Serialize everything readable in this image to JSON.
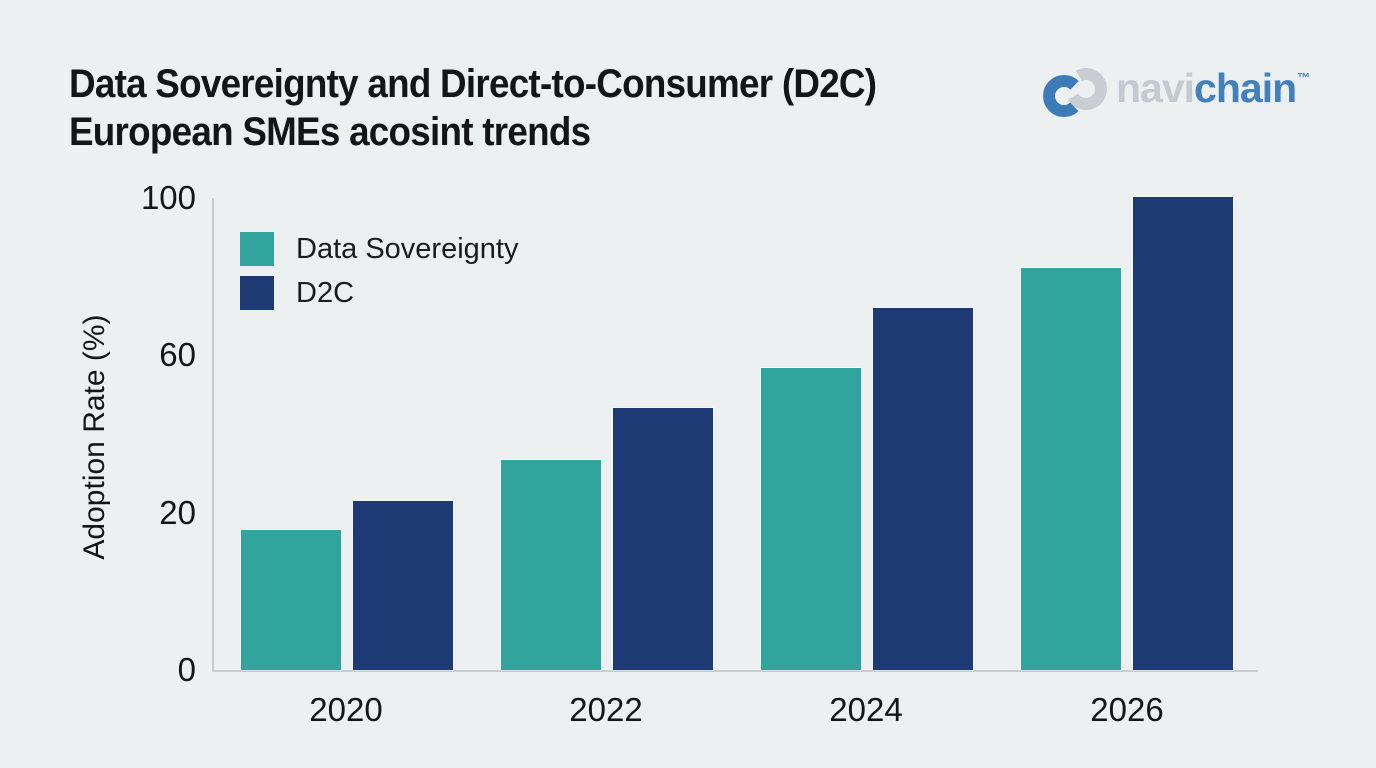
{
  "header": {
    "title_line1": "Data Sovereignty and Direct-to-Consumer (D2C)",
    "title_line2": "European SMEs acosint trends"
  },
  "logo": {
    "mark": "interlocking-chain-rings-icon",
    "gray_word": "navi",
    "blue_word": "chain",
    "trademark": "™",
    "blue": "#4381bd",
    "gray": "#c3cad0",
    "mark_blue": "#3d7ab8",
    "mark_gray": "#c9ced3"
  },
  "legend": {
    "items": [
      {
        "label": "Data Sovereignty",
        "color": "#31a49e"
      },
      {
        "label": "D2C",
        "color": "#1e3a74"
      }
    ]
  },
  "axes": {
    "ylabel": "Adoption Rate (%)",
    "yticks": [
      "100",
      "60",
      "20",
      "0"
    ],
    "xticks": [
      "2020",
      "2022",
      "2024",
      "2026"
    ]
  },
  "chart_data": {
    "type": "bar",
    "title": "Data Sovereignty and Direct-to-Consumer (D2C) European SMEs acosint trends",
    "categories": [
      "2020",
      "2022",
      "2024",
      "2026"
    ],
    "series": [
      {
        "name": "Data Sovereignty",
        "color": "#31a49e",
        "values": [
          17,
          32,
          56,
          82
        ],
        "render_heights_pct": [
          29.6,
          44.4,
          63.9,
          85.0
        ]
      },
      {
        "name": "D2C",
        "color": "#1e3a74",
        "values": [
          22,
          46,
          71,
          100
        ],
        "render_heights_pct": [
          35.7,
          55.4,
          76.5,
          100
        ]
      }
    ],
    "xlabel": "",
    "ylabel": "Adoption Rate (%)",
    "ylim": [
      0,
      100
    ],
    "yticks_displayed": [
      0,
      20,
      60,
      100
    ],
    "grid": false,
    "legend_position": "upper-left-inside",
    "background": "#edf0f1",
    "axis_color": "#c7ccd1",
    "text_color": "#141517"
  }
}
